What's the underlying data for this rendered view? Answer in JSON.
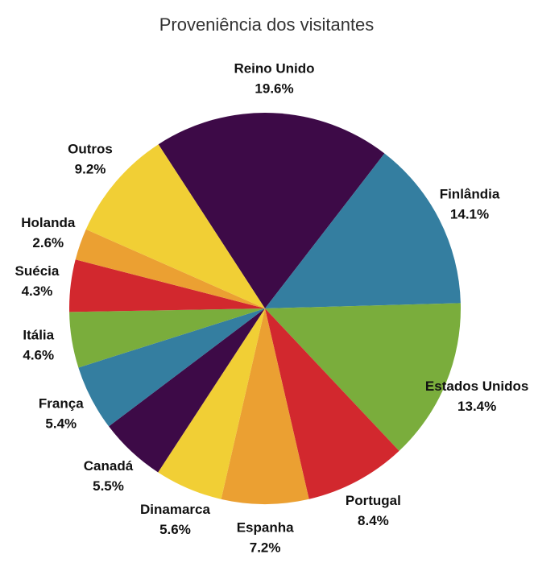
{
  "chart_data": {
    "type": "pie",
    "title": "Proveniência dos visitantes",
    "categories": [
      "Reino Unido",
      "Finlândia",
      "Estados Unidos",
      "Portugal",
      "Espanha",
      "Dinamarca",
      "Canadá",
      "França",
      "Itália",
      "Suécia",
      "Holanda",
      "Outros"
    ],
    "values": [
      19.6,
      14.1,
      13.4,
      8.4,
      7.2,
      5.6,
      5.5,
      5.4,
      4.6,
      4.3,
      2.6,
      9.2
    ],
    "value_labels": [
      "19.6%",
      "14.1%",
      "13.4%",
      "8.4%",
      "7.2%",
      "5.6%",
      "5.5%",
      "5.4%",
      "4.6%",
      "4.3%",
      "2.6%",
      "9.2%"
    ],
    "colors": [
      "#3d0a47",
      "#347ea0",
      "#7aad3c",
      "#d2282e",
      "#eba032",
      "#f1cf35",
      "#3d0a47",
      "#347ea0",
      "#7aad3c",
      "#d2282e",
      "#eba032",
      "#f1cf35"
    ]
  }
}
